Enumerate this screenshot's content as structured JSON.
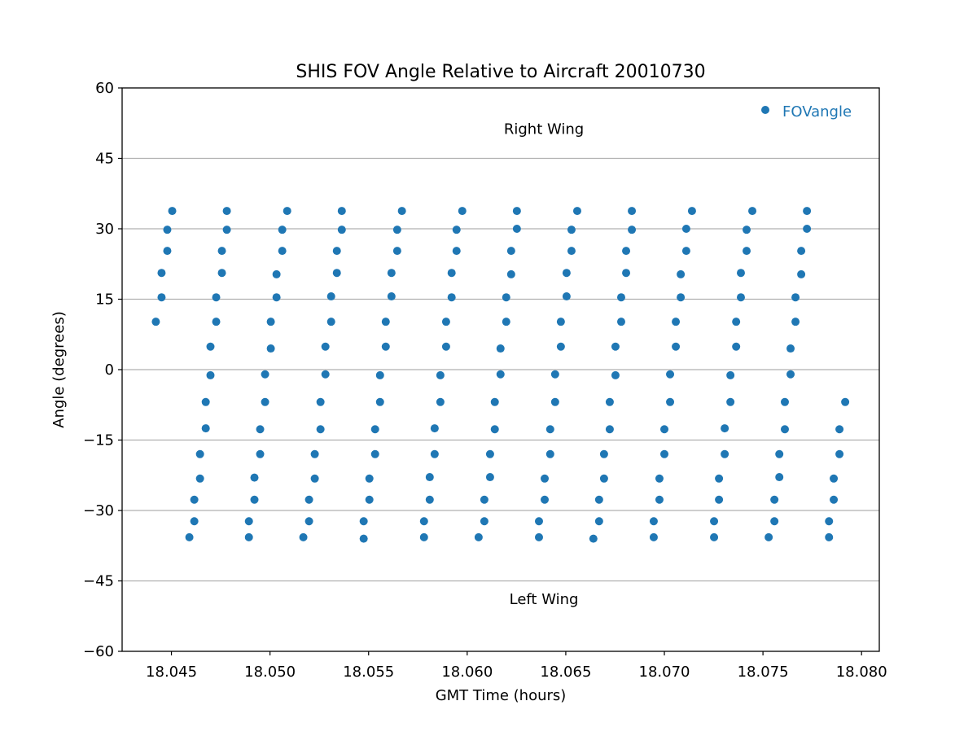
{
  "chart_data": {
    "type": "scatter",
    "title": "SHIS FOV Angle Relative to Aircraft 20010730",
    "xlabel": "GMT Time (hours)",
    "ylabel": "Angle (degrees)",
    "xlim": [
      18.0425,
      18.0809
    ],
    "ylim": [
      -60,
      60
    ],
    "xticks": [
      18.045,
      18.05,
      18.055,
      18.06,
      18.065,
      18.07,
      18.075,
      18.08
    ],
    "xtick_labels": [
      "18.045",
      "18.050",
      "18.055",
      "18.060",
      "18.065",
      "18.070",
      "18.075",
      "18.080"
    ],
    "yticks": [
      -60,
      -45,
      -30,
      -15,
      0,
      15,
      30,
      45,
      60
    ],
    "ytick_labels": [
      "−60",
      "−45",
      "−30",
      "−15",
      "0",
      "15",
      "30",
      "45",
      "60"
    ],
    "grid": "horizontal",
    "legend": {
      "position": "top-right",
      "entries": [
        "FOVangle"
      ]
    },
    "colors": {
      "series": "#1f77b4",
      "grid": "#b0b0b0"
    },
    "annotations": [
      {
        "text": "Right Wing",
        "x": 18.06389,
        "y": 51.2
      },
      {
        "text": "Left Wing",
        "x": 18.06389,
        "y": -48.9
      }
    ],
    "series": [
      {
        "name": "FOVangle",
        "scans": [
          [
            [
              18.04421,
              10.2
            ],
            [
              18.0445,
              15.4
            ],
            [
              18.0445,
              20.6
            ],
            [
              18.04479,
              25.3
            ],
            [
              18.04479,
              29.8
            ],
            [
              18.04504,
              33.8
            ]
          ],
          [
            [
              18.04591,
              -35.7
            ],
            [
              18.04616,
              -32.3
            ],
            [
              18.04616,
              -27.7
            ],
            [
              18.04645,
              -23.2
            ],
            [
              18.04645,
              -18.0
            ],
            [
              18.04674,
              -12.5
            ],
            [
              18.04674,
              -6.9
            ],
            [
              18.04698,
              -1.2
            ],
            [
              18.04698,
              4.9
            ],
            [
              18.04727,
              10.2
            ],
            [
              18.04727,
              15.4
            ],
            [
              18.04756,
              20.6
            ],
            [
              18.04756,
              25.3
            ],
            [
              18.04781,
              29.8
            ],
            [
              18.04781,
              33.8
            ]
          ],
          [
            [
              18.04893,
              -35.7
            ],
            [
              18.04893,
              -32.3
            ],
            [
              18.04921,
              -27.7
            ],
            [
              18.04921,
              -23.0
            ],
            [
              18.0495,
              -18.0
            ],
            [
              18.0495,
              -12.7
            ],
            [
              18.04975,
              -6.9
            ],
            [
              18.04975,
              -1.0
            ],
            [
              18.05004,
              4.5
            ],
            [
              18.05004,
              10.2
            ],
            [
              18.05033,
              15.4
            ],
            [
              18.05033,
              20.3
            ],
            [
              18.05062,
              25.3
            ],
            [
              18.05062,
              29.8
            ],
            [
              18.05087,
              33.8
            ]
          ],
          [
            [
              18.05169,
              -35.7
            ],
            [
              18.05198,
              -32.3
            ],
            [
              18.05198,
              -27.7
            ],
            [
              18.05227,
              -23.2
            ],
            [
              18.05227,
              -18.0
            ],
            [
              18.05256,
              -12.7
            ],
            [
              18.05256,
              -6.9
            ],
            [
              18.05281,
              -1.0
            ],
            [
              18.05281,
              4.9
            ],
            [
              18.0531,
              10.2
            ],
            [
              18.0531,
              15.6
            ],
            [
              18.05339,
              20.6
            ],
            [
              18.05339,
              25.3
            ],
            [
              18.05364,
              29.8
            ],
            [
              18.05364,
              33.8
            ]
          ],
          [
            [
              18.05475,
              -36.0
            ],
            [
              18.05475,
              -32.3
            ],
            [
              18.05504,
              -27.7
            ],
            [
              18.05504,
              -23.2
            ],
            [
              18.05533,
              -18.0
            ],
            [
              18.05533,
              -12.7
            ],
            [
              18.05558,
              -6.9
            ],
            [
              18.05558,
              -1.2
            ],
            [
              18.05587,
              4.9
            ],
            [
              18.05587,
              10.2
            ],
            [
              18.05616,
              15.6
            ],
            [
              18.05616,
              20.6
            ],
            [
              18.05645,
              25.3
            ],
            [
              18.05645,
              29.8
            ],
            [
              18.05669,
              33.8
            ]
          ],
          [
            [
              18.05781,
              -35.7
            ],
            [
              18.05781,
              -32.3
            ],
            [
              18.0581,
              -27.7
            ],
            [
              18.0581,
              -22.9
            ],
            [
              18.05835,
              -18.0
            ],
            [
              18.05835,
              -12.5
            ],
            [
              18.05864,
              -6.9
            ],
            [
              18.05864,
              -1.2
            ],
            [
              18.05893,
              4.9
            ],
            [
              18.05893,
              10.2
            ],
            [
              18.05921,
              15.4
            ],
            [
              18.05921,
              20.6
            ],
            [
              18.05946,
              25.3
            ],
            [
              18.05946,
              29.8
            ],
            [
              18.05975,
              33.8
            ]
          ],
          [
            [
              18.06058,
              -35.7
            ],
            [
              18.06087,
              -32.3
            ],
            [
              18.06087,
              -27.7
            ],
            [
              18.06116,
              -22.9
            ],
            [
              18.06116,
              -18.0
            ],
            [
              18.0614,
              -12.7
            ],
            [
              18.0614,
              -6.9
            ],
            [
              18.06169,
              -1.0
            ],
            [
              18.06169,
              4.5
            ],
            [
              18.06198,
              10.2
            ],
            [
              18.06198,
              15.4
            ],
            [
              18.06223,
              20.3
            ],
            [
              18.06223,
              25.3
            ],
            [
              18.06252,
              30.0
            ],
            [
              18.06252,
              33.8
            ]
          ],
          [
            [
              18.06364,
              -35.7
            ],
            [
              18.06364,
              -32.3
            ],
            [
              18.06393,
              -27.7
            ],
            [
              18.06393,
              -23.2
            ],
            [
              18.06421,
              -18.0
            ],
            [
              18.06421,
              -12.7
            ],
            [
              18.06446,
              -6.9
            ],
            [
              18.06446,
              -1.0
            ],
            [
              18.06475,
              4.9
            ],
            [
              18.06475,
              10.2
            ],
            [
              18.06504,
              15.6
            ],
            [
              18.06504,
              20.6
            ],
            [
              18.06529,
              25.3
            ],
            [
              18.06529,
              29.8
            ],
            [
              18.06558,
              33.8
            ]
          ],
          [
            [
              18.0664,
              -36.0
            ],
            [
              18.06669,
              -32.3
            ],
            [
              18.06669,
              -27.7
            ],
            [
              18.06694,
              -23.2
            ],
            [
              18.06694,
              -18.0
            ],
            [
              18.06723,
              -12.7
            ],
            [
              18.06723,
              -6.9
            ],
            [
              18.06752,
              -1.2
            ],
            [
              18.06752,
              4.9
            ],
            [
              18.06781,
              10.2
            ],
            [
              18.06781,
              15.4
            ],
            [
              18.06806,
              20.6
            ],
            [
              18.06806,
              25.3
            ],
            [
              18.06835,
              29.8
            ],
            [
              18.06835,
              33.8
            ]
          ],
          [
            [
              18.06946,
              -35.7
            ],
            [
              18.06946,
              -32.3
            ],
            [
              18.06975,
              -27.7
            ],
            [
              18.06975,
              -23.2
            ],
            [
              18.07,
              -18.0
            ],
            [
              18.07,
              -12.7
            ],
            [
              18.07029,
              -6.9
            ],
            [
              18.07029,
              -1.0
            ],
            [
              18.07058,
              4.9
            ],
            [
              18.07058,
              10.2
            ],
            [
              18.07083,
              15.4
            ],
            [
              18.07083,
              20.3
            ],
            [
              18.07111,
              25.3
            ],
            [
              18.07111,
              30.0
            ],
            [
              18.0714,
              33.8
            ]
          ],
          [
            [
              18.07252,
              -35.7
            ],
            [
              18.07252,
              -32.3
            ],
            [
              18.07277,
              -27.7
            ],
            [
              18.07277,
              -23.2
            ],
            [
              18.07306,
              -18.0
            ],
            [
              18.07306,
              -12.5
            ],
            [
              18.07335,
              -6.9
            ],
            [
              18.07335,
              -1.2
            ],
            [
              18.07364,
              4.9
            ],
            [
              18.07364,
              10.2
            ],
            [
              18.07388,
              15.4
            ],
            [
              18.07388,
              20.6
            ],
            [
              18.07417,
              25.3
            ],
            [
              18.07417,
              29.8
            ],
            [
              18.07446,
              33.8
            ]
          ],
          [
            [
              18.07529,
              -35.7
            ],
            [
              18.07558,
              -32.3
            ],
            [
              18.07558,
              -27.7
            ],
            [
              18.07583,
              -22.9
            ],
            [
              18.07583,
              -18.0
            ],
            [
              18.07611,
              -12.7
            ],
            [
              18.07611,
              -6.9
            ],
            [
              18.0764,
              -1.0
            ],
            [
              18.0764,
              4.5
            ],
            [
              18.07665,
              10.2
            ],
            [
              18.07665,
              15.4
            ],
            [
              18.07694,
              20.3
            ],
            [
              18.07694,
              25.3
            ],
            [
              18.07723,
              30.0
            ],
            [
              18.07723,
              33.8
            ]
          ],
          [
            [
              18.07835,
              -35.7
            ],
            [
              18.07835,
              -32.3
            ],
            [
              18.07859,
              -27.7
            ],
            [
              18.07859,
              -23.2
            ],
            [
              18.07888,
              -18.0
            ],
            [
              18.07888,
              -12.7
            ],
            [
              18.07917,
              -6.9
            ]
          ]
        ]
      }
    ]
  }
}
